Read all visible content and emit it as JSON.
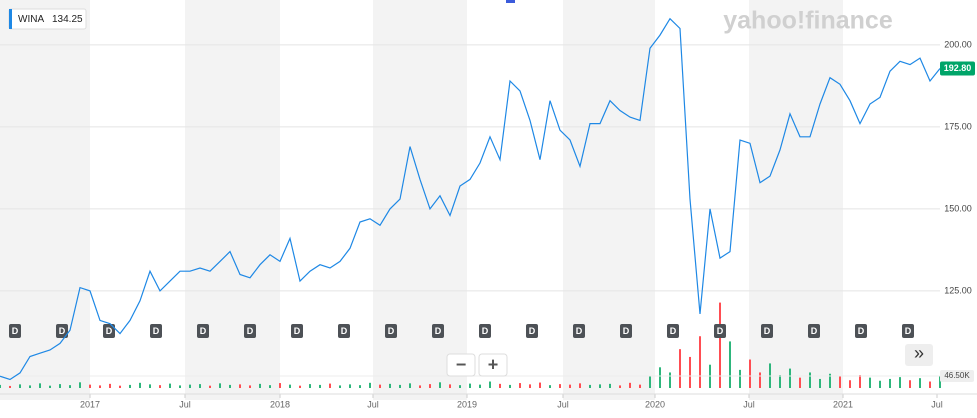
{
  "chart_data": {
    "type": "line",
    "series": [
      {
        "name": "WINA",
        "color": "#1e88e5",
        "values": [
          99,
          98,
          100,
          105,
          106,
          107,
          109,
          113,
          126,
          125,
          116,
          115,
          112,
          116,
          122,
          131,
          125,
          128,
          131,
          131,
          132,
          131,
          134,
          137,
          130,
          129,
          133,
          136,
          134,
          141,
          128,
          131,
          133,
          132,
          134,
          138,
          146,
          147,
          145,
          150,
          153,
          169,
          159,
          150,
          154,
          148,
          157,
          159,
          164,
          172,
          165,
          189,
          186,
          177,
          165,
          183,
          174,
          171,
          163,
          176,
          176,
          183,
          180,
          178,
          177,
          199,
          203,
          208,
          205,
          153,
          118,
          150,
          135,
          137,
          171,
          170,
          158,
          160,
          168,
          179,
          172,
          172,
          182,
          190,
          188,
          183,
          176,
          182,
          184,
          192,
          195,
          194,
          196,
          189,
          192.8
        ]
      }
    ],
    "legend": {
      "symbol": "WINA",
      "price": "134.25"
    },
    "last_label": "192.80",
    "xlim": [
      0,
      94
    ],
    "ylim": [
      95.4,
      213.7
    ],
    "yticks": [
      {
        "value": 125,
        "label": "125.00"
      },
      {
        "value": 150,
        "label": "150.00"
      },
      {
        "value": 175,
        "label": "175.00"
      },
      {
        "value": 200,
        "label": "200.00"
      }
    ],
    "xticks": [
      {
        "value": 9,
        "label": "2017"
      },
      {
        "value": 18.5,
        "label": "Jul"
      },
      {
        "value": 28,
        "label": "2018"
      },
      {
        "value": 37.3,
        "label": "Jul"
      },
      {
        "value": 46.7,
        "label": "2019"
      },
      {
        "value": 56.3,
        "label": "Jul"
      },
      {
        "value": 65.5,
        "label": "2020"
      },
      {
        "value": 74.9,
        "label": "Jul"
      },
      {
        "value": 84.3,
        "label": "2021"
      },
      {
        "value": 93.7,
        "label": "Jul"
      }
    ],
    "grid": true,
    "volume": {
      "up_color": "#2db67c",
      "down_color": "#ff4d52",
      "vlim": [
        0,
        340
      ],
      "tick": {
        "value": 46.5,
        "label": "46.50K"
      },
      "values": [
        12,
        8,
        14,
        10,
        18,
        9,
        15,
        11,
        22,
        13,
        10,
        16,
        9,
        12,
        20,
        14,
        11,
        17,
        10,
        13,
        15,
        9,
        18,
        12,
        14,
        10,
        16,
        11,
        19,
        13,
        9,
        15,
        12,
        17,
        10,
        14,
        11,
        20,
        13,
        16,
        12,
        18,
        10,
        15,
        22,
        14,
        11,
        17,
        13,
        25,
        16,
        12,
        19,
        14,
        21,
        11,
        15,
        13,
        18,
        12,
        14,
        16,
        10,
        20,
        13,
        45,
        80,
        60,
        150,
        120,
        200,
        90,
        330,
        180,
        70,
        110,
        60,
        95,
        50,
        75,
        40,
        60,
        35,
        55,
        45,
        30,
        50,
        40,
        28,
        35,
        42,
        30,
        38,
        25,
        46.5
      ]
    },
    "dividends": [
      "D",
      "D",
      "D",
      "D",
      "D",
      "D",
      "D",
      "D",
      "D",
      "D",
      "D",
      "D",
      "D",
      "D",
      "D",
      "D",
      "D",
      "D",
      "D",
      "D"
    ],
    "logo": "yahoo!finance",
    "controls": {
      "zoom_out": "−",
      "zoom_in": "+",
      "scroll": "»"
    }
  }
}
